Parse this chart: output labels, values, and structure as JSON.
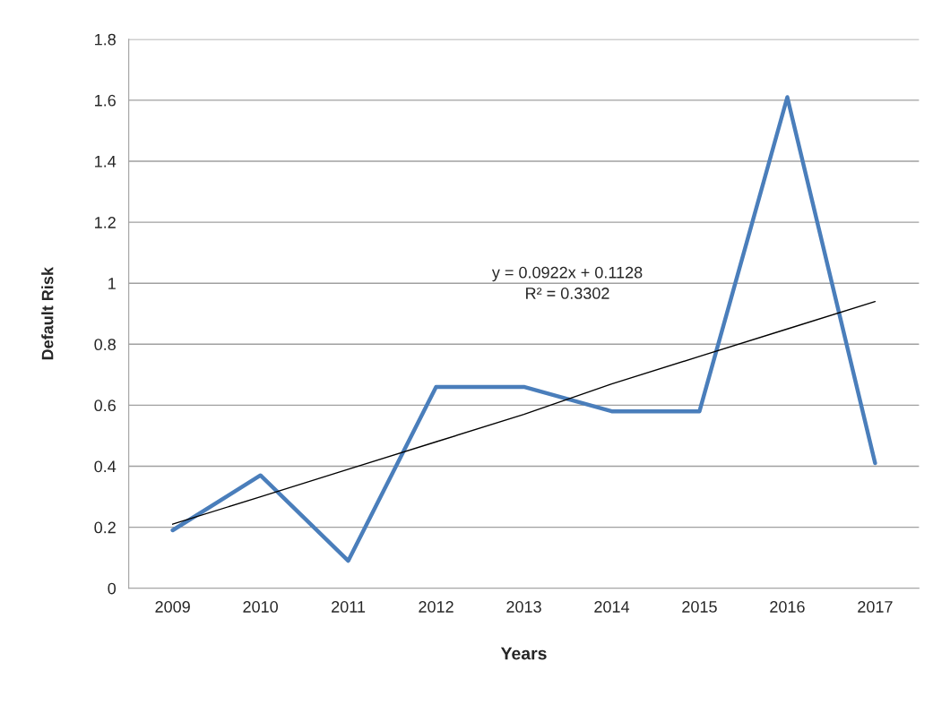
{
  "chart_data": {
    "type": "line",
    "xlabel": "Years",
    "ylabel": "Default Risk",
    "categories": [
      "2009",
      "2010",
      "2011",
      "2012",
      "2013",
      "2014",
      "2015",
      "2016",
      "2017"
    ],
    "series": [
      {
        "color": "#4a7ebb",
        "values": [
          0.19,
          0.37,
          0.09,
          0.66,
          0.66,
          0.58,
          0.58,
          1.61,
          0.41
        ]
      },
      {
        "color": "#000000",
        "values": [
          0.21,
          0.3,
          0.39,
          0.48,
          0.57,
          0.67,
          0.76,
          0.85,
          0.94
        ]
      }
    ],
    "annotations": [
      "y = 0.0922x + 0.1128",
      "R² = 0.3302"
    ],
    "ylim": [
      0,
      1.8
    ],
    "yticks": [
      0,
      0.2,
      0.4,
      0.6,
      0.8,
      1,
      1.2,
      1.4,
      1.6,
      1.8
    ],
    "grid": "y",
    "legend": false,
    "marker": "none",
    "line_style": "solid"
  }
}
